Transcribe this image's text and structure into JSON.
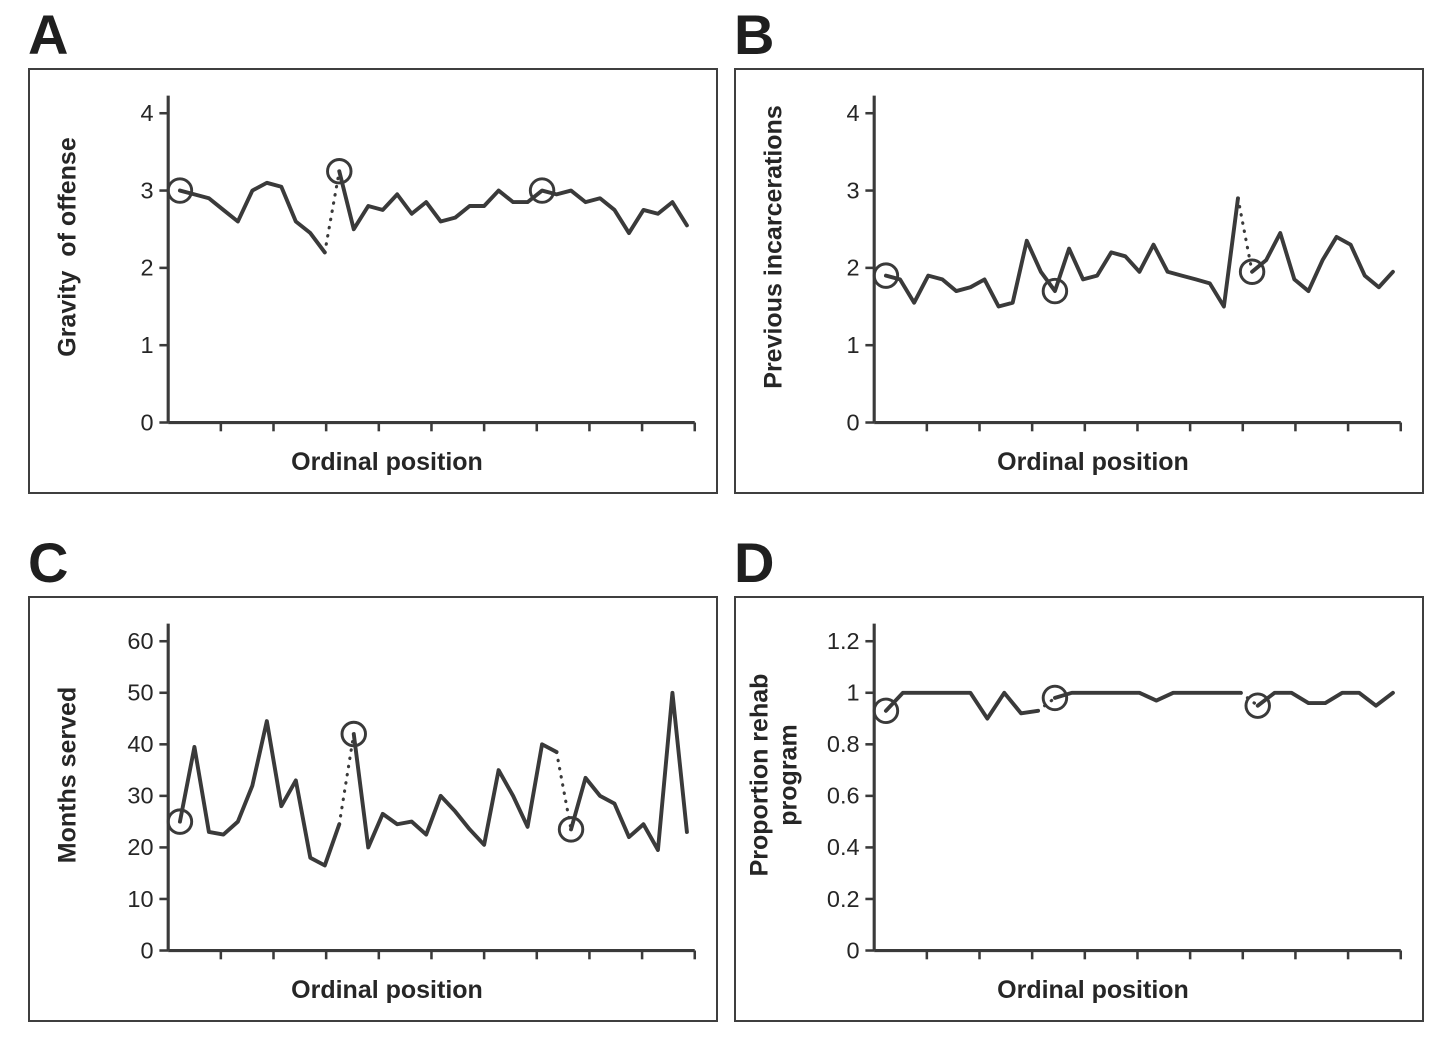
{
  "figure": {
    "background": "#ffffff",
    "line_color": "#3a3a3a",
    "text_color": "#262626"
  },
  "panels": [
    {
      "letter": "A",
      "ylabel": "Gravity  of offense",
      "xlabel": "Ordinal position",
      "chart_data": {
        "type": "line",
        "title": "",
        "xlabel": "Ordinal position",
        "ylabel": "Gravity of offense",
        "ylim": [
          0,
          4
        ],
        "ytick_values": [
          0,
          1,
          2,
          3,
          4
        ],
        "ytick_labels": [
          "0",
          "1",
          "2",
          "3",
          "4"
        ],
        "x_ticks_unlabeled": 10,
        "grid": false,
        "legend": "none",
        "values": [
          3.0,
          2.95,
          2.9,
          2.75,
          2.6,
          3.0,
          3.1,
          3.05,
          2.6,
          2.45,
          2.2,
          3.25,
          2.5,
          2.8,
          2.75,
          2.95,
          2.7,
          2.85,
          2.6,
          2.65,
          2.8,
          2.8,
          3.0,
          2.85,
          2.85,
          3.0,
          2.95,
          3.0,
          2.85,
          2.9,
          2.75,
          2.45,
          2.75,
          2.7,
          2.85,
          2.55
        ],
        "circled_indices": [
          0,
          11,
          25
        ],
        "dotted_segments": [
          [
            10,
            11
          ]
        ]
      }
    },
    {
      "letter": "B",
      "ylabel": "Previous incarcerations",
      "xlabel": "Ordinal position",
      "chart_data": {
        "type": "line",
        "title": "",
        "xlabel": "Ordinal position",
        "ylabel": "Previous incarcerations",
        "ylim": [
          0,
          4
        ],
        "ytick_values": [
          0,
          1,
          2,
          3,
          4
        ],
        "ytick_labels": [
          "0",
          "1",
          "2",
          "3",
          "4"
        ],
        "x_ticks_unlabeled": 10,
        "grid": false,
        "legend": "none",
        "values": [
          1.9,
          1.85,
          1.55,
          1.9,
          1.85,
          1.7,
          1.75,
          1.85,
          1.5,
          1.55,
          2.35,
          1.95,
          1.7,
          2.25,
          1.85,
          1.9,
          2.2,
          2.15,
          1.95,
          2.3,
          1.95,
          1.9,
          1.85,
          1.8,
          1.5,
          2.9,
          1.95,
          2.1,
          2.45,
          1.85,
          1.7,
          2.1,
          2.4,
          2.3,
          1.9,
          1.75,
          1.95
        ],
        "circled_indices": [
          0,
          12,
          26
        ],
        "dotted_segments": [
          [
            25,
            26
          ]
        ]
      }
    },
    {
      "letter": "C",
      "ylabel": "Months served",
      "xlabel": "Ordinal position",
      "chart_data": {
        "type": "line",
        "title": "",
        "xlabel": "Ordinal position",
        "ylabel": "Months served",
        "ylim": [
          0,
          60
        ],
        "ytick_values": [
          0,
          10,
          20,
          30,
          40,
          50,
          60
        ],
        "ytick_labels": [
          "0",
          "10",
          "20",
          "30",
          "40",
          "50",
          "60"
        ],
        "x_ticks_unlabeled": 10,
        "grid": false,
        "legend": "none",
        "values": [
          25,
          39.5,
          23,
          22.5,
          25,
          32,
          44.5,
          28,
          33,
          18,
          16.5,
          24.5,
          42,
          20,
          26.5,
          24.5,
          25,
          22.5,
          30,
          27,
          23.5,
          20.5,
          35,
          30,
          24,
          40,
          38.5,
          23.5,
          33.5,
          30,
          28.5,
          22,
          24.5,
          19.5,
          50,
          23
        ],
        "circled_indices": [
          0,
          12,
          27
        ],
        "dotted_segments": [
          [
            11,
            12
          ],
          [
            26,
            27
          ]
        ]
      }
    },
    {
      "letter": "D",
      "ylabel": "Proportion rehab\nprogram",
      "xlabel": "Ordinal position",
      "chart_data": {
        "type": "line",
        "title": "",
        "xlabel": "Ordinal position",
        "ylabel": "Proportion rehab program",
        "ylim": [
          0,
          1.2
        ],
        "ytick_values": [
          0,
          0.2,
          0.4,
          0.6,
          0.8,
          1,
          1.2
        ],
        "ytick_labels": [
          "0",
          "0.2",
          "0.4",
          "0.6",
          "0.8",
          "1",
          "1.2"
        ],
        "x_ticks_unlabeled": 10,
        "grid": false,
        "legend": "none",
        "values": [
          0.93,
          1,
          1,
          1,
          1,
          1,
          0.9,
          1,
          0.92,
          0.93,
          0.98,
          1,
          1,
          1,
          1,
          1,
          0.97,
          1,
          1,
          1,
          1,
          1,
          0.95,
          1,
          1,
          0.96,
          0.96,
          1,
          1,
          0.95,
          1
        ],
        "circled_indices": [
          0,
          10,
          22
        ],
        "dotted_segments": [
          [
            9,
            10
          ],
          [
            21,
            22
          ]
        ]
      }
    }
  ]
}
